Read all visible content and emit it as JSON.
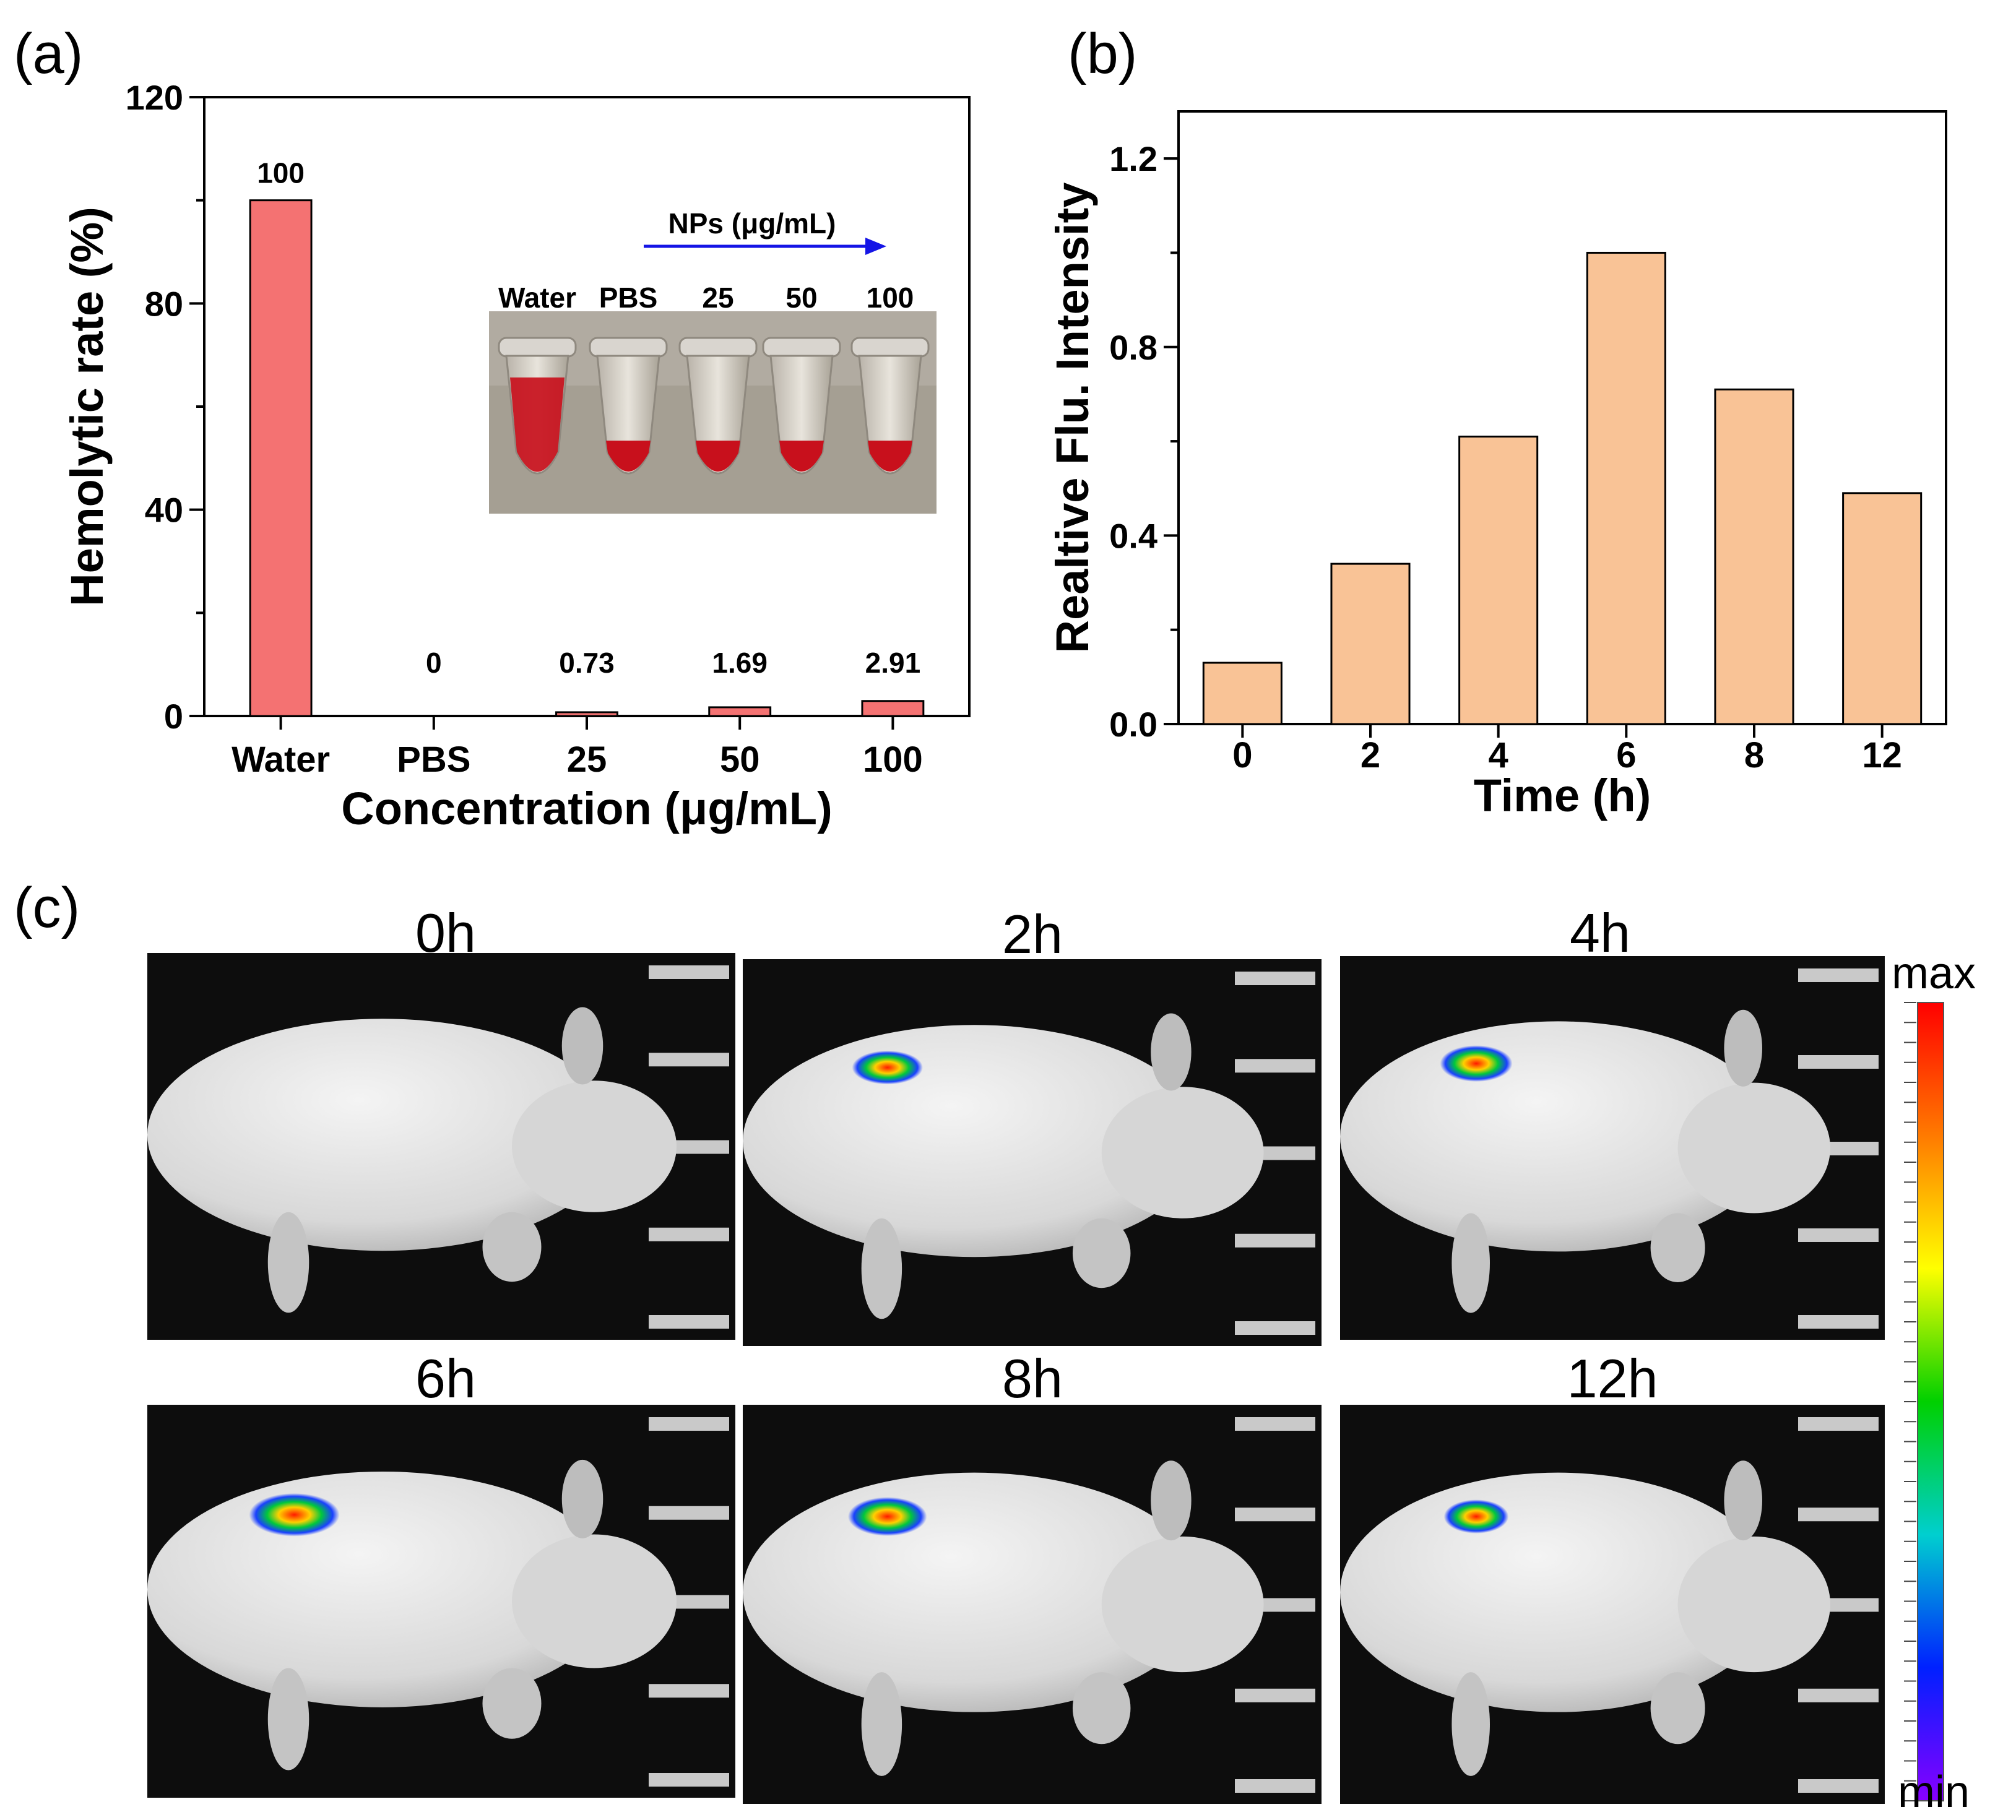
{
  "chart_data": [
    {
      "panel": "(a)",
      "type": "bar",
      "categories": [
        "Water",
        "PBS",
        "25",
        "50",
        "100"
      ],
      "values": [
        100,
        0,
        0.73,
        1.69,
        2.91
      ],
      "data_labels": [
        "100",
        "0",
        "0.73",
        "1.69",
        "2.91"
      ],
      "xlabel": "Concentration (μg/mL)",
      "ylabel": "Hemolytic rate (%)",
      "ylim": [
        0,
        120
      ],
      "yticks": [
        "0",
        "40",
        "80",
        "120"
      ],
      "bar_color": "#f47272",
      "inset": {
        "arrow_label": "NPs (μg/mL)",
        "tube_labels": [
          "Water",
          "PBS",
          "25",
          "50",
          "100"
        ],
        "arrow_color": "#1515e6",
        "blood_color": "#c8101c"
      }
    },
    {
      "panel": "(b)",
      "type": "bar",
      "categories": [
        "0",
        "2",
        "4",
        "6",
        "8",
        "12"
      ],
      "values": [
        0.13,
        0.34,
        0.61,
        1.0,
        0.71,
        0.49
      ],
      "xlabel": "Time (h)",
      "ylabel": "Realtive Flu. Intensity",
      "ylim": [
        0,
        1.3
      ],
      "yticks": [
        "0.0",
        "0.4",
        "0.8",
        "1.2"
      ],
      "bar_color": "#f9c396"
    }
  ],
  "panel_c": {
    "label": "(c)",
    "timepoints": [
      "0h",
      "2h",
      "4h",
      "6h",
      "8h",
      "12h"
    ],
    "signal": [
      0,
      0.55,
      0.7,
      1.0,
      0.75,
      0.5
    ],
    "colorbar_max": "max",
    "colorbar_min": "min",
    "colormap": [
      "#ff0000",
      "#ff7a00",
      "#ffff00",
      "#00d000",
      "#00cfcf",
      "#0020ff",
      "#8800ff"
    ]
  }
}
